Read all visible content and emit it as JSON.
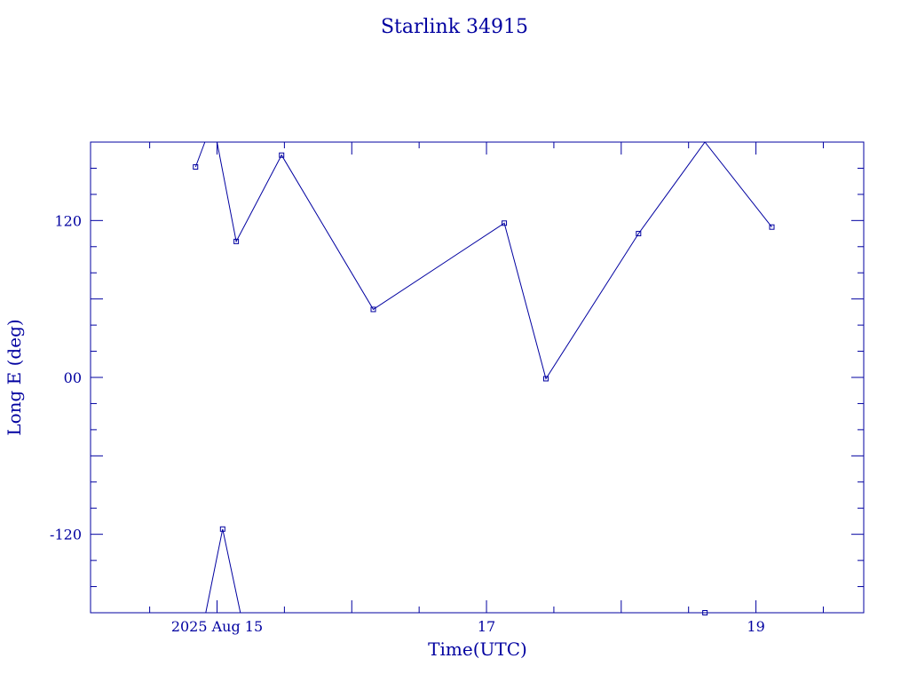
{
  "chart_data": {
    "type": "line",
    "title": "Starlink 34915",
    "xlabel": "Time(UTC)",
    "ylabel": "Long E (deg)",
    "xlim": [
      "2025-08-14T01:28",
      "2025-08-19T19:12"
    ],
    "ylim": [
      -180,
      180
    ],
    "x_ticks": [
      {
        "x": "2025-08-15T00:00",
        "label": "2025 Aug 15"
      },
      {
        "x": "2025-08-17T00:00",
        "label": "17"
      },
      {
        "x": "2025-08-19T00:00",
        "label": "19"
      }
    ],
    "y_ticks": [
      {
        "y": 120,
        "label": "120"
      },
      {
        "y": 0,
        "label": "00"
      },
      {
        "y": -120,
        "label": "-120"
      }
    ],
    "grid": false,
    "color": "#0000a0",
    "segments": [
      [
        {
          "x": "2025-08-14T20:10",
          "y": 161
        },
        {
          "x": "2025-08-14T21:50",
          "y": 180
        }
      ],
      [
        {
          "x": "2025-08-15T00:00",
          "y": 180
        },
        {
          "x": "2025-08-15T03:25",
          "y": 104
        },
        {
          "x": "2025-08-15T11:30",
          "y": 170
        },
        {
          "x": "2025-08-16T03:50",
          "y": 52
        },
        {
          "x": "2025-08-17T03:10",
          "y": 118
        },
        {
          "x": "2025-08-17T10:35",
          "y": -1
        },
        {
          "x": "2025-08-18T03:05",
          "y": 110
        },
        {
          "x": "2025-08-18T14:55",
          "y": 180
        }
      ],
      [
        {
          "x": "2025-08-14T22:00",
          "y": -180
        },
        {
          "x": "2025-08-15T01:00",
          "y": -116
        },
        {
          "x": "2025-08-15T04:10",
          "y": -180
        }
      ],
      [
        {
          "x": "2025-08-18T14:55",
          "y": 180
        },
        {
          "x": "2025-08-19T02:50",
          "y": 115
        }
      ]
    ],
    "markers": [
      {
        "x": "2025-08-14T20:10",
        "y": 161
      },
      {
        "x": "2025-08-15T03:25",
        "y": 104
      },
      {
        "x": "2025-08-15T11:30",
        "y": 170
      },
      {
        "x": "2025-08-16T03:50",
        "y": 52
      },
      {
        "x": "2025-08-17T03:10",
        "y": 118
      },
      {
        "x": "2025-08-17T10:35",
        "y": -1
      },
      {
        "x": "2025-08-18T03:05",
        "y": 110
      },
      {
        "x": "2025-08-19T02:50",
        "y": 115
      },
      {
        "x": "2025-08-15T01:00",
        "y": -116
      },
      {
        "x": "2025-08-18T14:55",
        "y": -180
      }
    ]
  }
}
